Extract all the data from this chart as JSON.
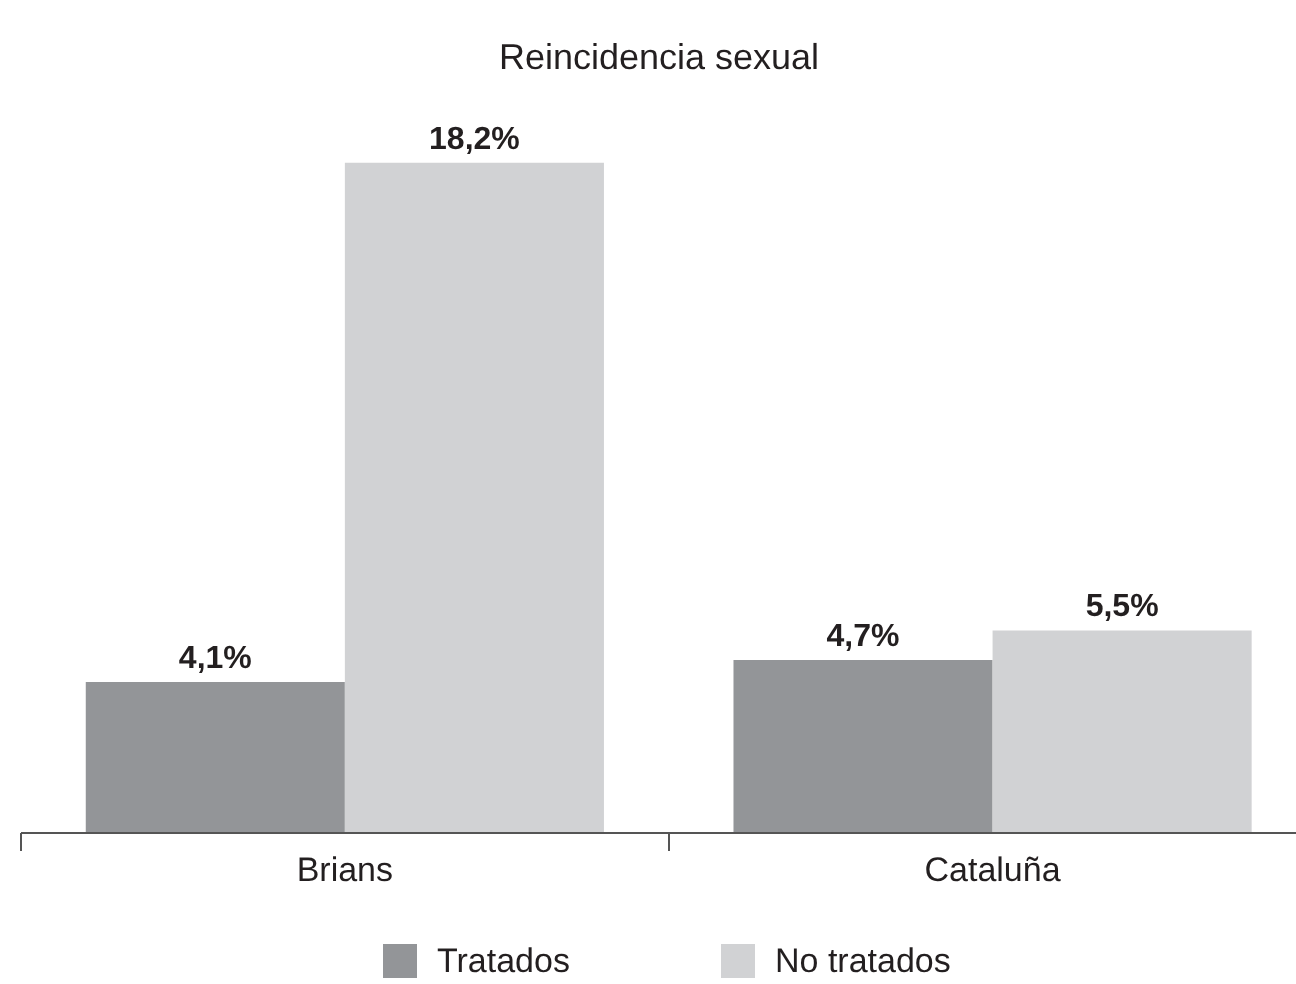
{
  "chart_data": {
    "type": "bar",
    "title": "Reincidencia sexual",
    "categories": [
      "Brians",
      "Cataluña"
    ],
    "series": [
      {
        "name": "Tratados",
        "color": "#939598",
        "values": [
          4.1,
          4.7
        ],
        "value_labels": [
          "4,1%",
          "4,7%"
        ]
      },
      {
        "name": "No tratados",
        "color": "#d1d2d4",
        "values": [
          18.2,
          5.5
        ],
        "value_labels": [
          "18,2%",
          "5,5%"
        ]
      }
    ],
    "legend": "bottom",
    "grid": false,
    "tick_labels": "x"
  }
}
